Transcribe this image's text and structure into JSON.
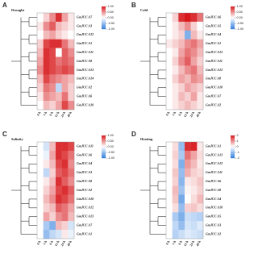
{
  "chart_data": [
    {
      "type": "heatmap",
      "panel_label": "A",
      "title": "Drought",
      "x": [
        "0 h",
        "1 h",
        "6 h",
        "12 h",
        "24 h",
        "48 h"
      ],
      "y": [
        "GmJUC A7",
        "GmJUC A3",
        "GmJUC A12",
        "GmJUC A1",
        "GmJUC A11",
        "GmJUC A8",
        "GmJUC A13",
        "GmJUC A14",
        "GmJUC A2",
        "GmJUC A6",
        "GmJUC A10"
      ],
      "values": [
        [
          0,
          0.2,
          0.5,
          0.9,
          0.4,
          0.1
        ],
        [
          0.1,
          0.5,
          0.7,
          0.3,
          0.2,
          0.1
        ],
        [
          0,
          0.3,
          0.4,
          0.2,
          0.1,
          0
        ],
        [
          0.2,
          0.8,
          0.9,
          0.9,
          0.6,
          0.3
        ],
        [
          0.3,
          0.9,
          0.8,
          0,
          0.7,
          0.5
        ],
        [
          0.4,
          0.9,
          0.8,
          0.6,
          0.7,
          0.6
        ],
        [
          0.5,
          0.9,
          0.8,
          0.7,
          0.8,
          0.7
        ],
        [
          0.3,
          0.8,
          0.6,
          0.5,
          0.4,
          0.3
        ],
        [
          0.2,
          0.6,
          0.5,
          -0.3,
          0.4,
          0.2
        ],
        [
          0.1,
          0.5,
          0.4,
          0.3,
          0.6,
          0.2
        ],
        [
          0,
          0.3,
          0.2,
          0.4,
          0.8,
          0.5
        ]
      ],
      "zlim": [
        -1,
        1
      ],
      "zticks": [
        {
          "value": 1,
          "label": "1.00"
        },
        {
          "value": 0.5,
          "label": "0.50"
        },
        {
          "value": 0,
          "label": "0.00"
        },
        {
          "value": -0.5,
          "label": "-0.50"
        },
        {
          "value": -1,
          "label": "-1.00"
        }
      ]
    },
    {
      "type": "heatmap",
      "panel_label": "B",
      "title": "Cold",
      "x": [
        "0 h",
        "1 h",
        "6 h",
        "12 h",
        "24 h",
        "48 h"
      ],
      "y": [
        "GmJUC A6",
        "GmJUC A5",
        "GmJUC A4",
        "GmJUC A1",
        "GmJUC A13",
        "GmJUC A11",
        "GmJUC A12",
        "GmJUC A8",
        "GmJUC A10",
        "GmJUC A7",
        "GmJUC A2"
      ],
      "values": [
        [
          0,
          0.2,
          0.9,
          1,
          0.9,
          0.6
        ],
        [
          0,
          0.1,
          0.3,
          0.5,
          0.2,
          0
        ],
        [
          0,
          0.1,
          0.2,
          -0.6,
          0.3,
          0.1
        ],
        [
          0.1,
          0.2,
          0.3,
          0.5,
          0.6,
          0.4
        ],
        [
          0,
          0.1,
          0.4,
          0.6,
          0.5,
          0.3
        ],
        [
          0,
          0.2,
          0.5,
          0.7,
          0.4,
          0.2
        ],
        [
          0,
          0.1,
          0.3,
          0.5,
          0.6,
          0.3
        ],
        [
          0,
          0.2,
          0.4,
          0.3,
          0.5,
          0.4
        ],
        [
          0,
          0.1,
          0.2,
          0.4,
          0.3,
          0.2
        ],
        [
          0,
          0.1,
          0.3,
          0.2,
          0.4,
          0.1
        ],
        [
          0,
          0.1,
          0.2,
          0.3,
          0.2,
          0.1
        ]
      ],
      "zlim": [
        -1,
        1
      ],
      "zticks": [
        {
          "value": 1,
          "label": "1.00"
        },
        {
          "value": 0.5,
          "label": "0.50"
        },
        {
          "value": 0,
          "label": "0.00"
        },
        {
          "value": -0.5,
          "label": "-0.50"
        },
        {
          "value": -1,
          "label": "-1.00"
        }
      ]
    },
    {
      "type": "heatmap",
      "panel_label": "C",
      "title": "Salinity",
      "x": [
        "0 h",
        "1 h",
        "6 h",
        "12 h",
        "24 h",
        "48 h"
      ],
      "y": [
        "GmJUC A11",
        "GmJUC A6",
        "GmJUC A4",
        "GmJUC A3",
        "GmJUC A8",
        "GmJUC A2",
        "GmJUC A10",
        "GmJUC A12",
        "GmJUC A13",
        "GmJUC A7",
        "GmJUC A1"
      ],
      "values": [
        [
          0,
          -0.2,
          0.3,
          0.9,
          0.9,
          0.8
        ],
        [
          0,
          -0.1,
          0.4,
          0.9,
          0.8,
          0.6
        ],
        [
          0,
          0.1,
          0.3,
          0.8,
          0.9,
          0.5
        ],
        [
          0,
          -0.3,
          0.2,
          0.7,
          0.8,
          0.6
        ],
        [
          0,
          0.1,
          0.3,
          0.9,
          0.7,
          0.5
        ],
        [
          0,
          0.2,
          0.4,
          0.8,
          0.9,
          0.7
        ],
        [
          0,
          0.3,
          0.5,
          0.9,
          0.8,
          0.6
        ],
        [
          0,
          0.2,
          0.3,
          0.7,
          0.6,
          0.4
        ],
        [
          0,
          0.4,
          0.2,
          0.5,
          0.6,
          0.3
        ],
        [
          0,
          -0.4,
          -0.6,
          0.3,
          0.2,
          -0.2
        ],
        [
          0,
          -0.5,
          -0.3,
          -0.2,
          0.1,
          -0.1
        ]
      ],
      "zlim": [
        -1,
        1
      ],
      "zticks": [
        {
          "value": 1,
          "label": "1.00"
        },
        {
          "value": 0.5,
          "label": "0.50"
        },
        {
          "value": 0,
          "label": "0.00"
        },
        {
          "value": -0.5,
          "label": "-0.50"
        },
        {
          "value": -1,
          "label": "-1.00"
        }
      ]
    },
    {
      "type": "heatmap",
      "panel_label": "D",
      "title": "Heating",
      "x": [
        "0 h",
        "1 h",
        "6 h",
        "12 h",
        "24 h",
        "48 h"
      ],
      "y": [
        "GmJUC A1",
        "GmJUC A13",
        "GmJUC A12",
        "GmJUC A11",
        "GmJUC A6",
        "GmJUC A8",
        "GmJUC A4",
        "GmJUC A10",
        "GmJUC A5",
        "GmJUC A3",
        "GmJUC A2"
      ],
      "values": [
        [
          0,
          0.3,
          -1,
          1.8,
          1.9,
          0.2
        ],
        [
          0,
          0.4,
          -0.8,
          1.2,
          0.8,
          0.3
        ],
        [
          0,
          0.3,
          -1.2,
          0.9,
          0.6,
          0.2
        ],
        [
          0,
          0.5,
          -1,
          0.7,
          0.4,
          0.3
        ],
        [
          0,
          0.4,
          -1.1,
          0.2,
          0.3,
          0.5
        ],
        [
          0,
          0.6,
          -0.9,
          0.1,
          0.2,
          0.4
        ],
        [
          0,
          0.5,
          -1.3,
          0,
          0.3,
          0.6
        ],
        [
          0,
          0.3,
          -1,
          0.4,
          0.5,
          0.3
        ],
        [
          0,
          -0.8,
          -1.2,
          -0.5,
          -0.6,
          -0.7
        ],
        [
          0,
          -0.6,
          -1,
          -0.4,
          -0.5,
          -0.3
        ],
        [
          0,
          -0.7,
          -0.5,
          -0.3,
          -0.4,
          -0.5
        ]
      ],
      "zlim": [
        -2,
        2
      ],
      "zticks": [
        2,
        1,
        0,
        -1,
        -2
      ]
    }
  ]
}
